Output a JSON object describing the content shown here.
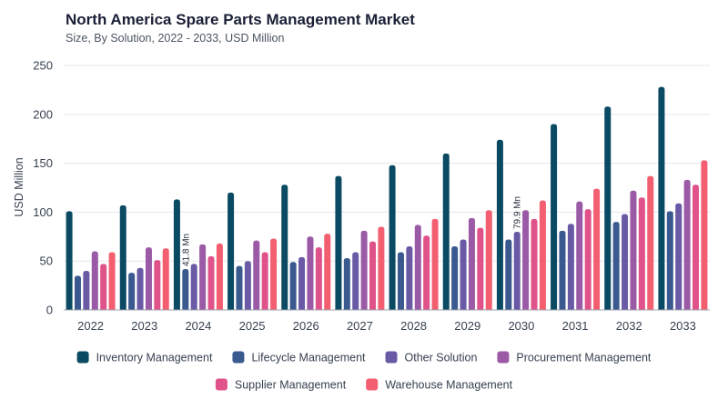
{
  "header": {
    "title": "North America Spare Parts Management Market",
    "subtitle": "Size, By Solution, 2022 - 2033, USD Million"
  },
  "chart_data": {
    "type": "bar",
    "title": "North America Spare Parts Management Market",
    "subtitle": "Size, By Solution, 2022 - 2033, USD Million",
    "xlabel": "",
    "ylabel": "USD Million",
    "ylim": [
      0,
      250
    ],
    "yticks": [
      0,
      50,
      100,
      150,
      200,
      250
    ],
    "grid": true,
    "legend_position": "bottom",
    "categories": [
      "2022",
      "2023",
      "2024",
      "2025",
      "2026",
      "2027",
      "2028",
      "2029",
      "2030",
      "2031",
      "2032",
      "2033"
    ],
    "series": [
      {
        "name": "Inventory Management",
        "color": "#0b4a63",
        "values": [
          101,
          107,
          113,
          120,
          128,
          137,
          148,
          160,
          174,
          190,
          208,
          228
        ]
      },
      {
        "name": "Lifecycle Management",
        "color": "#3a5a8f",
        "values": [
          35,
          38,
          41.8,
          45,
          49,
          53,
          59,
          65,
          72,
          81,
          90,
          101
        ]
      },
      {
        "name": "Other Solution",
        "color": "#6a5aa6",
        "values": [
          40,
          43,
          47,
          50,
          54,
          59,
          65,
          72,
          79.9,
          88,
          98,
          109
        ]
      },
      {
        "name": "Procurement Management",
        "color": "#9b5aa6",
        "values": [
          60,
          64,
          67,
          71,
          75,
          81,
          87,
          94,
          102,
          111,
          122,
          133
        ]
      },
      {
        "name": "Supplier Management",
        "color": "#e0538a",
        "values": [
          47,
          51,
          55,
          59,
          64,
          70,
          76,
          84,
          93,
          103,
          115,
          128
        ]
      },
      {
        "name": "Warehouse Management",
        "color": "#f35f70",
        "values": [
          59,
          63,
          68,
          73,
          78,
          85,
          93,
          102,
          112,
          124,
          137,
          153
        ]
      }
    ],
    "annotations": [
      {
        "category": "2024",
        "series": "Lifecycle Management",
        "text": "41.8 Mn"
      },
      {
        "category": "2030",
        "series": "Other Solution",
        "text": "79.9 Mn"
      }
    ]
  }
}
